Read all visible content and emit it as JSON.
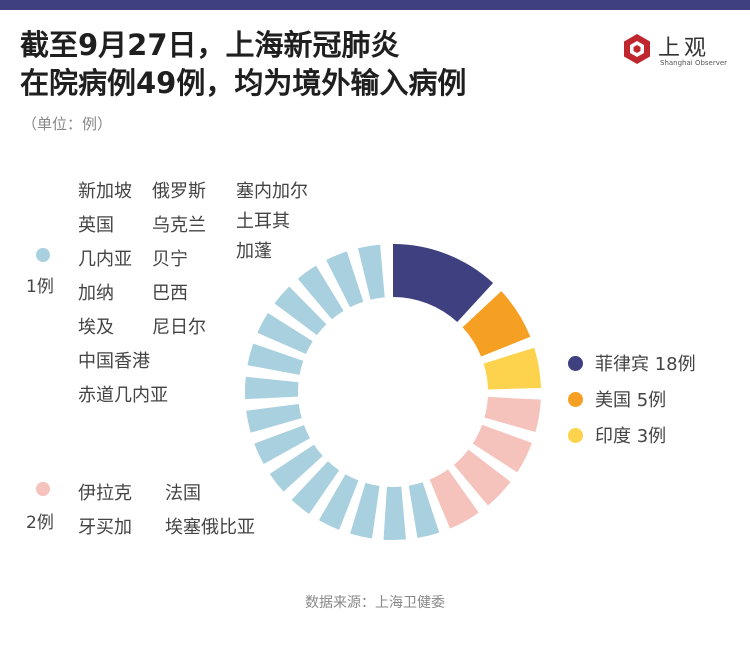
{
  "title_line1": "截至9月27日，上海新冠肺炎",
  "title_line2": "在院病例49例，均为境外输入病例",
  "unit": "（单位：例）",
  "logo": {
    "text": "上观",
    "sub": "Shanghai Observer"
  },
  "source": "数据来源：上海卫健委",
  "colors": {
    "philippines": "#3f4080",
    "usa": "#f5a023",
    "india": "#fdd24c",
    "one": "#a9d0df",
    "two": "#f5c2bc",
    "bar": "#3f4080"
  },
  "group_one": {
    "label": "1例",
    "countries": [
      "新加坡",
      "英国",
      "几内亚",
      "加纳",
      "埃及",
      "中国香港",
      "赤道几内亚",
      "俄罗斯",
      "乌克兰",
      "贝宁",
      "巴西",
      "尼日尔",
      "塞内加尔",
      "土耳其",
      "加蓬"
    ]
  },
  "group_two": {
    "label": "2例",
    "countries": [
      "伊拉克",
      "牙买加",
      "法国",
      "埃塞俄比亚"
    ]
  },
  "chart_data": {
    "type": "radial-bar",
    "total": 49,
    "legend": [
      {
        "name": "菲律宾",
        "value": 18,
        "label": "菲律宾 18例"
      },
      {
        "name": "美国",
        "value": 5,
        "label": "美国 5例"
      },
      {
        "name": "印度",
        "value": 3,
        "label": "印度 3例"
      }
    ],
    "series": [
      {
        "name": "菲律宾",
        "value": 18,
        "color_key": "philippines"
      },
      {
        "name": "美国",
        "value": 5,
        "color_key": "usa"
      },
      {
        "name": "印度",
        "value": 3,
        "color_key": "india"
      },
      {
        "name": "伊拉克",
        "value": 2,
        "color_key": "two"
      },
      {
        "name": "牙买加",
        "value": 2,
        "color_key": "two"
      },
      {
        "name": "法国",
        "value": 2,
        "color_key": "two"
      },
      {
        "name": "埃塞俄比亚",
        "value": 2,
        "color_key": "two"
      },
      {
        "name": "新加坡",
        "value": 1,
        "color_key": "one"
      },
      {
        "name": "英国",
        "value": 1,
        "color_key": "one"
      },
      {
        "name": "几内亚",
        "value": 1,
        "color_key": "one"
      },
      {
        "name": "加纳",
        "value": 1,
        "color_key": "one"
      },
      {
        "name": "埃及",
        "value": 1,
        "color_key": "one"
      },
      {
        "name": "中国香港",
        "value": 1,
        "color_key": "one"
      },
      {
        "name": "赤道几内亚",
        "value": 1,
        "color_key": "one"
      },
      {
        "name": "俄罗斯",
        "value": 1,
        "color_key": "one"
      },
      {
        "name": "乌克兰",
        "value": 1,
        "color_key": "one"
      },
      {
        "name": "贝宁",
        "value": 1,
        "color_key": "one"
      },
      {
        "name": "巴西",
        "value": 1,
        "color_key": "one"
      },
      {
        "name": "尼日尔",
        "value": 1,
        "color_key": "one"
      },
      {
        "name": "塞内加尔",
        "value": 1,
        "color_key": "one"
      },
      {
        "name": "土耳其",
        "value": 1,
        "color_key": "one"
      },
      {
        "name": "加蓬",
        "value": 1,
        "color_key": "one"
      }
    ]
  }
}
